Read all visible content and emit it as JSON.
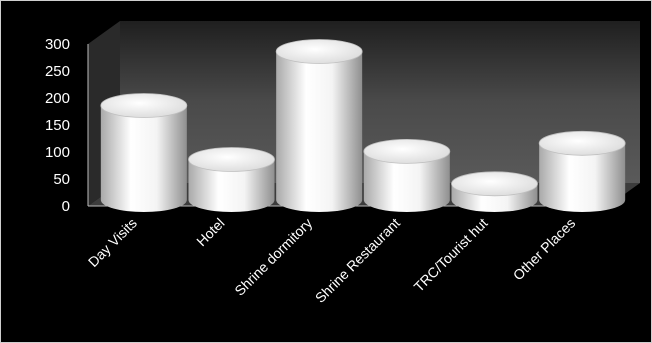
{
  "chart_data": {
    "type": "bar",
    "style": "3d-cylinder",
    "categories": [
      "Day Visits",
      "Hotel",
      "Shrine dormitory",
      "Shrine Restaurant",
      "TRC/Tourist hut",
      "Other Places"
    ],
    "values": [
      175,
      75,
      275,
      90,
      30,
      105
    ],
    "yticks": [
      "0",
      "50",
      "100",
      "150",
      "200",
      "250",
      "300"
    ],
    "ylim": [
      0,
      300
    ],
    "grid": false,
    "colors": {
      "background": "#000000",
      "back_wall": "#4a4a4a",
      "bar_light": "#ffffff",
      "bar_shadow": "#9a9a9a",
      "text": "#ffffff"
    }
  }
}
